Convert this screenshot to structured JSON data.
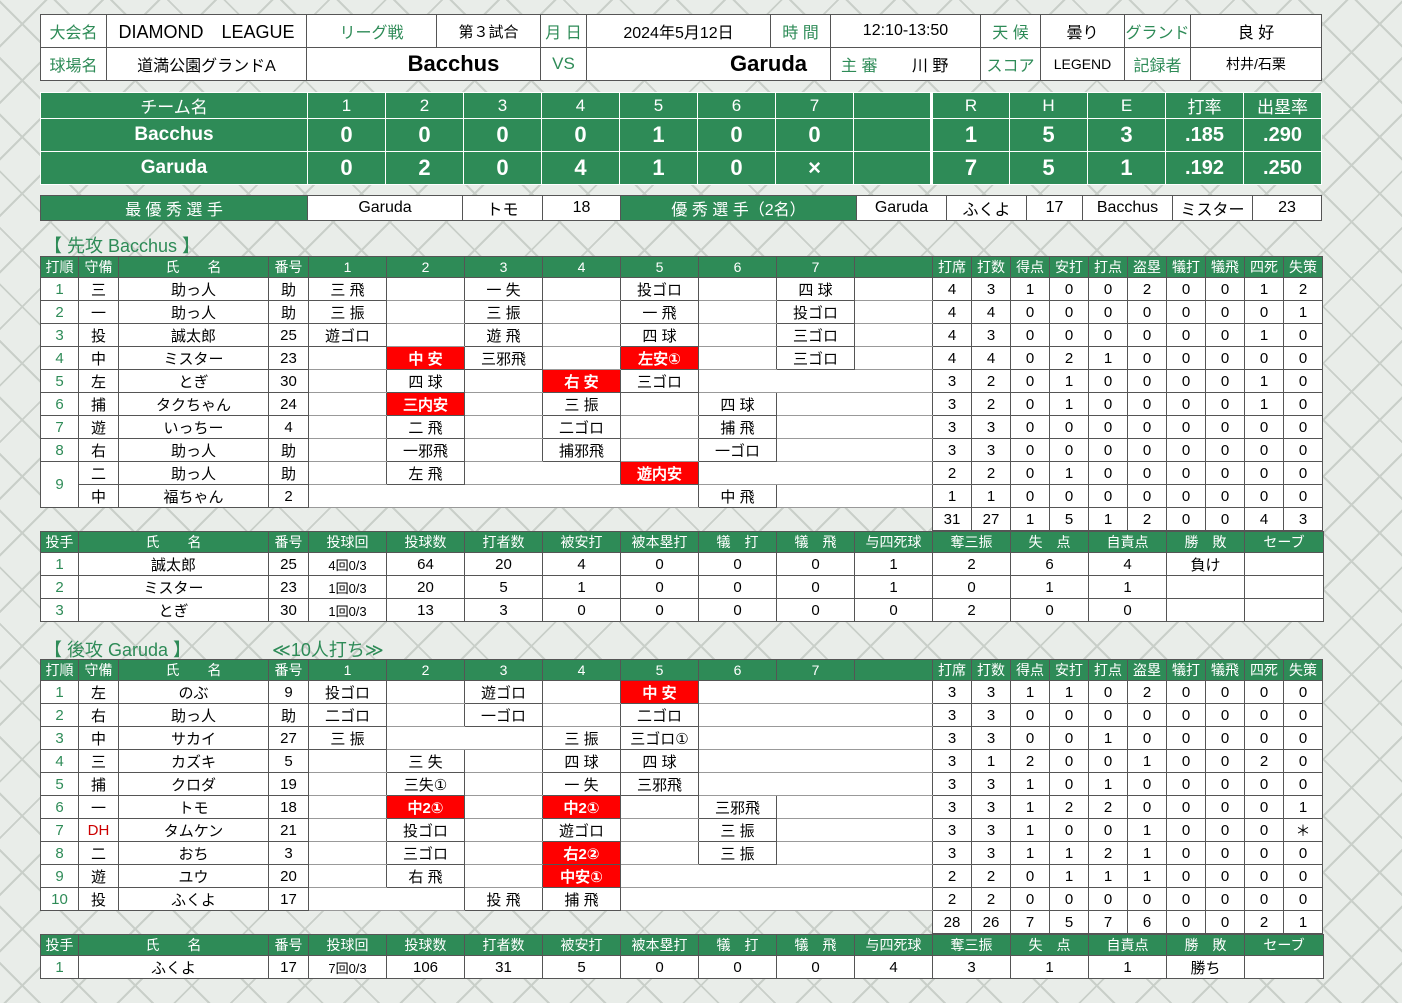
{
  "info": {
    "tournament_label": "大会名",
    "tournament": "DIAMOND　LEAGUE",
    "type": "リーグ戦",
    "game_no": "第３試合",
    "date_label": "月 日",
    "date": "2024年5月12日",
    "time_label": "時 間",
    "time": "12:10-13:50",
    "weather_label": "天 候",
    "weather": "曇り",
    "ground_label": "グランド",
    "ground": "良 好",
    "venue_label": "球場名",
    "venue": "道満公園グランドA",
    "home_team": "Bacchus",
    "vs": "VS",
    "away_team": "Garuda",
    "umpire_label": "主 審",
    "umpire": "川 野",
    "score_label": "スコア",
    "score_sys": "LEGEND",
    "recorder_label": "記録者",
    "recorder": "村井/石栗"
  },
  "scoreboard": {
    "headers": [
      "チーム名",
      "1",
      "2",
      "3",
      "4",
      "5",
      "6",
      "7",
      "",
      "R",
      "H",
      "E",
      "打率",
      "出塁率"
    ],
    "rows": [
      [
        "Bacchus",
        "0",
        "0",
        "0",
        "0",
        "1",
        "0",
        "0",
        "",
        "1",
        "5",
        "3",
        ".185",
        ".290"
      ],
      [
        "Garuda",
        "0",
        "2",
        "0",
        "4",
        "1",
        "0",
        "×",
        "",
        "7",
        "5",
        "1",
        ".192",
        ".250"
      ]
    ]
  },
  "awards": {
    "mvp_label": "最 優 秀 選 手",
    "mvp_team": "Garuda",
    "mvp_name": "トモ",
    "mvp_no": "18",
    "excellent_label": "優 秀 選 手（2名）",
    "ex1_team": "Garuda",
    "ex1_name": "ふくよ",
    "ex1_no": "17",
    "ex2_team": "Bacchus",
    "ex2_name": "ミスター",
    "ex2_no": "23"
  },
  "batting_headers": [
    "打順",
    "守備",
    "氏　　名",
    "番号",
    "1",
    "2",
    "3",
    "4",
    "5",
    "6",
    "7",
    "",
    "打席",
    "打数",
    "得点",
    "安打",
    "打点",
    "盗塁",
    "犠打",
    "犠飛",
    "四死",
    "失策"
  ],
  "pitching_headers": [
    "投手",
    "氏　　名",
    "番号",
    "投球回",
    "投球数",
    "打者数",
    "被安打",
    "被本塁打",
    "犠　打",
    "犠　飛",
    "与四死球",
    "奪三振",
    "失　点",
    "自責点",
    "勝　敗",
    "セーブ"
  ],
  "bacchus": {
    "title": "【 先攻 Bacchus 】",
    "batters": [
      {
        "order": "1",
        "pos": "三",
        "name": "助っ人",
        "no": "助",
        "inn": [
          [
            "三 飛",
            0
          ],
          [
            "",
            0
          ],
          [
            "一 失",
            0
          ],
          [
            "",
            0
          ],
          [
            "投ゴロ",
            0
          ],
          [
            "",
            0
          ],
          [
            "四 球",
            0
          ]
        ],
        "stats": [
          "4",
          "3",
          "1",
          "0",
          "0",
          "2",
          "0",
          "0",
          "1",
          "2"
        ]
      },
      {
        "order": "2",
        "pos": "一",
        "name": "助っ人",
        "no": "助",
        "inn": [
          [
            "三 振",
            0
          ],
          [
            "",
            0
          ],
          [
            "三 振",
            0
          ],
          [
            "",
            0
          ],
          [
            "一 飛",
            0
          ],
          [
            "",
            0
          ],
          [
            "投ゴロ",
            0
          ]
        ],
        "stats": [
          "4",
          "4",
          "0",
          "0",
          "0",
          "0",
          "0",
          "0",
          "0",
          "1"
        ]
      },
      {
        "order": "3",
        "pos": "投",
        "name": "誠太郎",
        "no": "25",
        "inn": [
          [
            "遊ゴロ",
            0
          ],
          [
            "",
            0
          ],
          [
            "遊 飛",
            0
          ],
          [
            "",
            0
          ],
          [
            "四 球",
            0
          ],
          [
            "",
            0
          ],
          [
            "三ゴロ",
            0
          ]
        ],
        "stats": [
          "4",
          "3",
          "0",
          "0",
          "0",
          "0",
          "0",
          "0",
          "1",
          "0"
        ]
      },
      {
        "order": "4",
        "pos": "中",
        "name": "ミスター",
        "no": "23",
        "inn": [
          [
            "",
            0
          ],
          [
            "中 安",
            1
          ],
          [
            "三邪飛",
            0
          ],
          [
            "",
            0
          ],
          [
            "左安①",
            1
          ],
          [
            "",
            0
          ],
          [
            "三ゴロ",
            0
          ]
        ],
        "stats": [
          "4",
          "4",
          "0",
          "2",
          "1",
          "0",
          "0",
          "0",
          "0",
          "0"
        ]
      },
      {
        "order": "5",
        "pos": "左",
        "name": "とぎ",
        "no": "30",
        "inn": [
          [
            "",
            0
          ],
          [
            "四 球",
            0
          ],
          [
            "",
            0
          ],
          [
            "右 安",
            1
          ],
          [
            "三ゴロ",
            0
          ],
          [
            "",
            0
          ],
          [
            "",
            0
          ]
        ],
        "stats": [
          "3",
          "2",
          "0",
          "1",
          "0",
          "0",
          "0",
          "0",
          "1",
          "0"
        ]
      },
      {
        "order": "6",
        "pos": "捕",
        "name": "タクちゃん",
        "no": "24",
        "inn": [
          [
            "",
            0
          ],
          [
            "三内安",
            1
          ],
          [
            "",
            0
          ],
          [
            "三 振",
            0
          ],
          [
            "",
            0
          ],
          [
            "四 球",
            0
          ],
          [
            "",
            0
          ]
        ],
        "stats": [
          "3",
          "2",
          "0",
          "1",
          "0",
          "0",
          "0",
          "0",
          "1",
          "0"
        ]
      },
      {
        "order": "7",
        "pos": "遊",
        "name": "いっちー",
        "no": "4",
        "inn": [
          [
            "",
            0
          ],
          [
            "二 飛",
            0
          ],
          [
            "",
            0
          ],
          [
            "二ゴロ",
            0
          ],
          [
            "",
            0
          ],
          [
            "捕 飛",
            0
          ],
          [
            "",
            0
          ]
        ],
        "stats": [
          "3",
          "3",
          "0",
          "0",
          "0",
          "0",
          "0",
          "0",
          "0",
          "0"
        ]
      },
      {
        "order": "8",
        "pos": "右",
        "name": "助っ人",
        "no": "助",
        "inn": [
          [
            "",
            0
          ],
          [
            "一邪飛",
            0
          ],
          [
            "",
            0
          ],
          [
            "捕邪飛",
            0
          ],
          [
            "",
            0
          ],
          [
            "一ゴロ",
            0
          ],
          [
            "",
            0
          ]
        ],
        "stats": [
          "3",
          "3",
          "0",
          "0",
          "0",
          "0",
          "0",
          "0",
          "0",
          "0"
        ]
      },
      {
        "order": "9",
        "pos": "二",
        "name": "助っ人",
        "no": "助",
        "inn": [
          [
            "",
            0
          ],
          [
            "左 飛",
            0
          ],
          [
            "",
            0
          ],
          [
            "",
            0
          ],
          [
            "遊内安",
            1
          ],
          [
            "",
            0
          ],
          [
            "",
            0
          ]
        ],
        "stats": [
          "2",
          "2",
          "0",
          "1",
          "0",
          "0",
          "0",
          "0",
          "0",
          "0"
        ]
      },
      {
        "order": "",
        "pos": "中",
        "name": "福ちゃん",
        "no": "2",
        "inn": [
          [
            "",
            0
          ],
          [
            "",
            0
          ],
          [
            "",
            0
          ],
          [
            "",
            0
          ],
          [
            "",
            0
          ],
          [
            "中 飛",
            0
          ],
          [
            "",
            0
          ]
        ],
        "stats": [
          "1",
          "1",
          "0",
          "0",
          "0",
          "0",
          "0",
          "0",
          "0",
          "0"
        ]
      }
    ],
    "totals": [
      "31",
      "27",
      "1",
      "5",
      "1",
      "2",
      "0",
      "0",
      "4",
      "3"
    ],
    "pitchers": [
      [
        "1",
        "誠太郎",
        "25",
        "4回0/3",
        "64",
        "20",
        "4",
        "0",
        "0",
        "0",
        "1",
        "2",
        "6",
        "4",
        "負け",
        ""
      ],
      [
        "2",
        "ミスター",
        "23",
        "1回0/3",
        "20",
        "5",
        "1",
        "0",
        "0",
        "0",
        "1",
        "0",
        "1",
        "1",
        "",
        ""
      ],
      [
        "3",
        "とぎ",
        "30",
        "1回0/3",
        "13",
        "3",
        "0",
        "0",
        "0",
        "0",
        "0",
        "2",
        "0",
        "0",
        "",
        ""
      ]
    ]
  },
  "garuda": {
    "title": "【 後攻 Garuda 】",
    "note": "≪10人打ち≫",
    "batters": [
      {
        "order": "1",
        "pos": "左",
        "name": "のぶ",
        "no": "9",
        "inn": [
          [
            "投ゴロ",
            0
          ],
          [
            "",
            0
          ],
          [
            "遊ゴロ",
            0
          ],
          [
            "",
            0
          ],
          [
            "中 安",
            1
          ],
          [
            "",
            0
          ],
          [
            "",
            0
          ]
        ],
        "stats": [
          "3",
          "3",
          "1",
          "1",
          "0",
          "2",
          "0",
          "0",
          "0",
          "0"
        ]
      },
      {
        "order": "2",
        "pos": "右",
        "name": "助っ人",
        "no": "助",
        "inn": [
          [
            "二ゴロ",
            0
          ],
          [
            "",
            0
          ],
          [
            "一ゴロ",
            0
          ],
          [
            "",
            0
          ],
          [
            "二ゴロ",
            0
          ],
          [
            "",
            0
          ],
          [
            "",
            0
          ]
        ],
        "stats": [
          "3",
          "3",
          "0",
          "0",
          "0",
          "0",
          "0",
          "0",
          "0",
          "0"
        ]
      },
      {
        "order": "3",
        "pos": "中",
        "name": "サカイ",
        "no": "27",
        "inn": [
          [
            "三 振",
            0
          ],
          [
            "",
            0
          ],
          [
            "",
            0
          ],
          [
            "三 振",
            0
          ],
          [
            "三ゴロ①",
            0
          ],
          [
            "",
            0
          ],
          [
            "",
            0
          ]
        ],
        "stats": [
          "3",
          "3",
          "0",
          "0",
          "1",
          "0",
          "0",
          "0",
          "0",
          "0"
        ]
      },
      {
        "order": "4",
        "pos": "三",
        "name": "カズキ",
        "no": "5",
        "inn": [
          [
            "",
            0
          ],
          [
            "三 失",
            0
          ],
          [
            "",
            0
          ],
          [
            "四 球",
            0
          ],
          [
            "四 球",
            0
          ],
          [
            "",
            0
          ],
          [
            "",
            0
          ]
        ],
        "stats": [
          "3",
          "1",
          "2",
          "0",
          "0",
          "1",
          "0",
          "0",
          "2",
          "0"
        ]
      },
      {
        "order": "5",
        "pos": "捕",
        "name": "クロダ",
        "no": "19",
        "inn": [
          [
            "",
            0
          ],
          [
            "三失①",
            0
          ],
          [
            "",
            0
          ],
          [
            "一 失",
            0
          ],
          [
            "三邪飛",
            0
          ],
          [
            "",
            0
          ],
          [
            "",
            0
          ]
        ],
        "stats": [
          "3",
          "3",
          "1",
          "0",
          "1",
          "0",
          "0",
          "0",
          "0",
          "0"
        ]
      },
      {
        "order": "6",
        "pos": "一",
        "name": "トモ",
        "no": "18",
        "inn": [
          [
            "",
            0
          ],
          [
            "中2①",
            1
          ],
          [
            "",
            0
          ],
          [
            "中2①",
            1
          ],
          [
            "",
            0
          ],
          [
            "三邪飛",
            0
          ],
          [
            "",
            0
          ]
        ],
        "stats": [
          "3",
          "3",
          "1",
          "2",
          "2",
          "0",
          "0",
          "0",
          "0",
          "1"
        ]
      },
      {
        "order": "7",
        "pos": "DH",
        "name": "タムケン",
        "no": "21",
        "inn": [
          [
            "",
            0
          ],
          [
            "投ゴロ",
            0
          ],
          [
            "",
            0
          ],
          [
            "遊ゴロ",
            0
          ],
          [
            "",
            0
          ],
          [
            "三 振",
            0
          ],
          [
            "",
            0
          ]
        ],
        "stats": [
          "3",
          "3",
          "1",
          "0",
          "0",
          "1",
          "0",
          "0",
          "0",
          "＊"
        ]
      },
      {
        "order": "8",
        "pos": "二",
        "name": "おち",
        "no": "3",
        "inn": [
          [
            "",
            0
          ],
          [
            "三ゴロ",
            0
          ],
          [
            "",
            0
          ],
          [
            "右2②",
            1
          ],
          [
            "",
            0
          ],
          [
            "三 振",
            0
          ],
          [
            "",
            0
          ]
        ],
        "stats": [
          "3",
          "3",
          "1",
          "1",
          "2",
          "1",
          "0",
          "0",
          "0",
          "0"
        ]
      },
      {
        "order": "9",
        "pos": "遊",
        "name": "ユウ",
        "no": "20",
        "inn": [
          [
            "",
            0
          ],
          [
            "右 飛",
            0
          ],
          [
            "",
            0
          ],
          [
            "中安①",
            1
          ],
          [
            "",
            0
          ],
          [
            "",
            0
          ],
          [
            "",
            0
          ]
        ],
        "stats": [
          "2",
          "2",
          "0",
          "1",
          "1",
          "1",
          "0",
          "0",
          "0",
          "0"
        ]
      },
      {
        "order": "10",
        "pos": "投",
        "name": "ふくよ",
        "no": "17",
        "inn": [
          [
            "",
            0
          ],
          [
            "",
            0
          ],
          [
            "投 飛",
            0
          ],
          [
            "捕 飛",
            0
          ],
          [
            "",
            0
          ],
          [
            "",
            0
          ],
          [
            "",
            0
          ]
        ],
        "stats": [
          "2",
          "2",
          "0",
          "0",
          "0",
          "0",
          "0",
          "0",
          "0",
          "0"
        ]
      }
    ],
    "totals": [
      "28",
      "26",
      "7",
      "5",
      "7",
      "6",
      "0",
      "0",
      "2",
      "1"
    ],
    "pitchers": [
      [
        "1",
        "ふくよ",
        "17",
        "7回0/3",
        "106",
        "31",
        "5",
        "0",
        "0",
        "0",
        "4",
        "3",
        "1",
        "1",
        "勝ち",
        ""
      ]
    ]
  }
}
